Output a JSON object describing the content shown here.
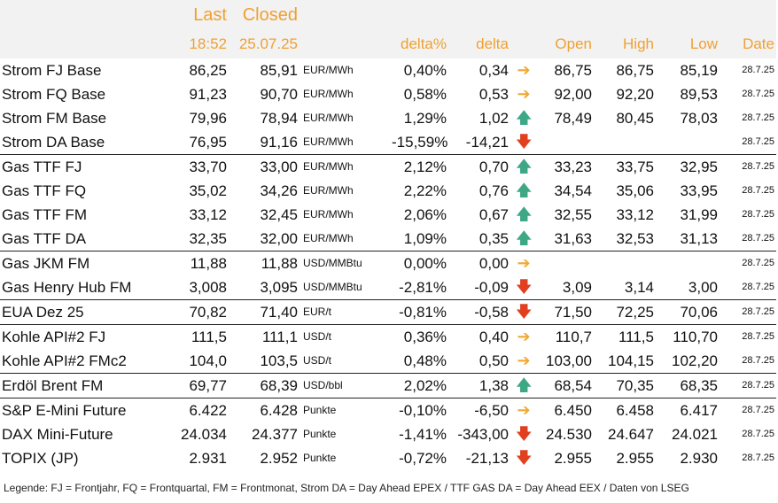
{
  "header": {
    "last": "Last",
    "closed": "Closed",
    "last_time": "18:52",
    "closed_date": "25.07.25",
    "delta_pct": "delta%",
    "delta": "delta",
    "open": "Open",
    "high": "High",
    "low": "Low",
    "date": "Date"
  },
  "rows": [
    {
      "name": "Strom FJ Base",
      "last": "86,25",
      "closed": "85,91",
      "unit": "EUR/MWh",
      "delta_pct": "0,40%",
      "delta": "0,34",
      "trend": "right",
      "open": "86,75",
      "high": "86,75",
      "low": "85,19",
      "date": "28.7.25"
    },
    {
      "name": "Strom FQ Base",
      "last": "91,23",
      "closed": "90,70",
      "unit": "EUR/MWh",
      "delta_pct": "0,58%",
      "delta": "0,53",
      "trend": "right",
      "open": "92,00",
      "high": "92,20",
      "low": "89,53",
      "date": "28.7.25"
    },
    {
      "name": "Strom FM Base",
      "last": "79,96",
      "closed": "78,94",
      "unit": "EUR/MWh",
      "delta_pct": "1,29%",
      "delta": "1,02",
      "trend": "up",
      "open": "78,49",
      "high": "80,45",
      "low": "78,03",
      "date": "28.7.25"
    },
    {
      "name": "Strom DA Base",
      "last": "76,95",
      "closed": "91,16",
      "unit": "EUR/MWh",
      "delta_pct": "-15,59%",
      "delta": "-14,21",
      "trend": "down",
      "open": "",
      "high": "",
      "low": "",
      "date": "28.7.25"
    },
    {
      "name": "Gas TTF FJ",
      "last": "33,70",
      "closed": "33,00",
      "unit": "EUR/MWh",
      "delta_pct": "2,12%",
      "delta": "0,70",
      "trend": "up",
      "open": "33,23",
      "high": "33,75",
      "low": "32,95",
      "date": "28.7.25"
    },
    {
      "name": "Gas TTF FQ",
      "last": "35,02",
      "closed": "34,26",
      "unit": "EUR/MWh",
      "delta_pct": "2,22%",
      "delta": "0,76",
      "trend": "up",
      "open": "34,54",
      "high": "35,06",
      "low": "33,95",
      "date": "28.7.25"
    },
    {
      "name": "Gas TTF FM",
      "last": "33,12",
      "closed": "32,45",
      "unit": "EUR/MWh",
      "delta_pct": "2,06%",
      "delta": "0,67",
      "trend": "up",
      "open": "32,55",
      "high": "33,12",
      "low": "31,99",
      "date": "28.7.25"
    },
    {
      "name": "Gas TTF DA",
      "last": "32,35",
      "closed": "32,00",
      "unit": "EUR/MWh",
      "delta_pct": "1,09%",
      "delta": "0,35",
      "trend": "up",
      "open": "31,63",
      "high": "32,53",
      "low": "31,13",
      "date": "28.7.25"
    },
    {
      "name": "Gas JKM FM",
      "last": "11,88",
      "closed": "11,88",
      "unit": "USD/MMBtu",
      "delta_pct": "0,00%",
      "delta": "0,00",
      "trend": "right",
      "open": "",
      "high": "",
      "low": "",
      "date": "28.7.25"
    },
    {
      "name": "Gas Henry Hub FM",
      "last": "3,008",
      "closed": "3,095",
      "unit": "USD/MMBtu",
      "delta_pct": "-2,81%",
      "delta": "-0,09",
      "trend": "down",
      "open": "3,09",
      "high": "3,14",
      "low": "3,00",
      "date": "28.7.25"
    },
    {
      "name": "EUA Dez 25",
      "last": "70,82",
      "closed": "71,40",
      "unit": "EUR/t",
      "delta_pct": "-0,81%",
      "delta": "-0,58",
      "trend": "down",
      "open": "71,50",
      "high": "72,25",
      "low": "70,06",
      "date": "28.7.25"
    },
    {
      "name": "Kohle API#2 FJ",
      "last": "111,5",
      "closed": "111,1",
      "unit": "USD/t",
      "delta_pct": "0,36%",
      "delta": "0,40",
      "trend": "right",
      "open": "110,7",
      "high": "111,5",
      "low": "110,70",
      "date": "28.7.25"
    },
    {
      "name": "Kohle API#2 FMc2",
      "last": "104,0",
      "closed": "103,5",
      "unit": "USD/t",
      "delta_pct": "0,48%",
      "delta": "0,50",
      "trend": "right",
      "open": "103,00",
      "high": "104,15",
      "low": "102,20",
      "date": "28.7.25"
    },
    {
      "name": "Erdöl Brent FM",
      "last": "69,77",
      "closed": "68,39",
      "unit": "USD/bbl",
      "delta_pct": "2,02%",
      "delta": "1,38",
      "trend": "up",
      "open": "68,54",
      "high": "70,35",
      "low": "68,35",
      "date": "28.7.25"
    },
    {
      "name": "S&P E-Mini Future",
      "last": "6.422",
      "closed": "6.428",
      "unit": "Punkte",
      "delta_pct": "-0,10%",
      "delta": "-6,50",
      "trend": "right",
      "open": "6.450",
      "high": "6.458",
      "low": "6.417",
      "date": "28.7.25"
    },
    {
      "name": "DAX Mini-Future",
      "last": "24.034",
      "closed": "24.377",
      "unit": "Punkte",
      "delta_pct": "-1,41%",
      "delta": "-343,00",
      "trend": "down",
      "open": "24.530",
      "high": "24.647",
      "low": "24.021",
      "date": "28.7.25"
    },
    {
      "name": "TOPIX (JP)",
      "last": "2.931",
      "closed": "2.952",
      "unit": "Punkte",
      "delta_pct": "-0,72%",
      "delta": "-21,13",
      "trend": "down",
      "open": "2.955",
      "high": "2.955",
      "low": "2.930",
      "date": "28.7.25"
    }
  ],
  "legend": "Legende: FJ = Frontjahr, FQ = Frontquartal, FM = Frontmonat, Strom DA = Day Ahead EPEX / TTF GAS DA = Day Ahead EEX / Daten von LSEG",
  "colors": {
    "header_text": "#f0a032",
    "header_bg": "#f2f2f2",
    "arrow_right": "#f0a832",
    "arrow_up": "#3ea886",
    "arrow_down": "#e04020"
  }
}
